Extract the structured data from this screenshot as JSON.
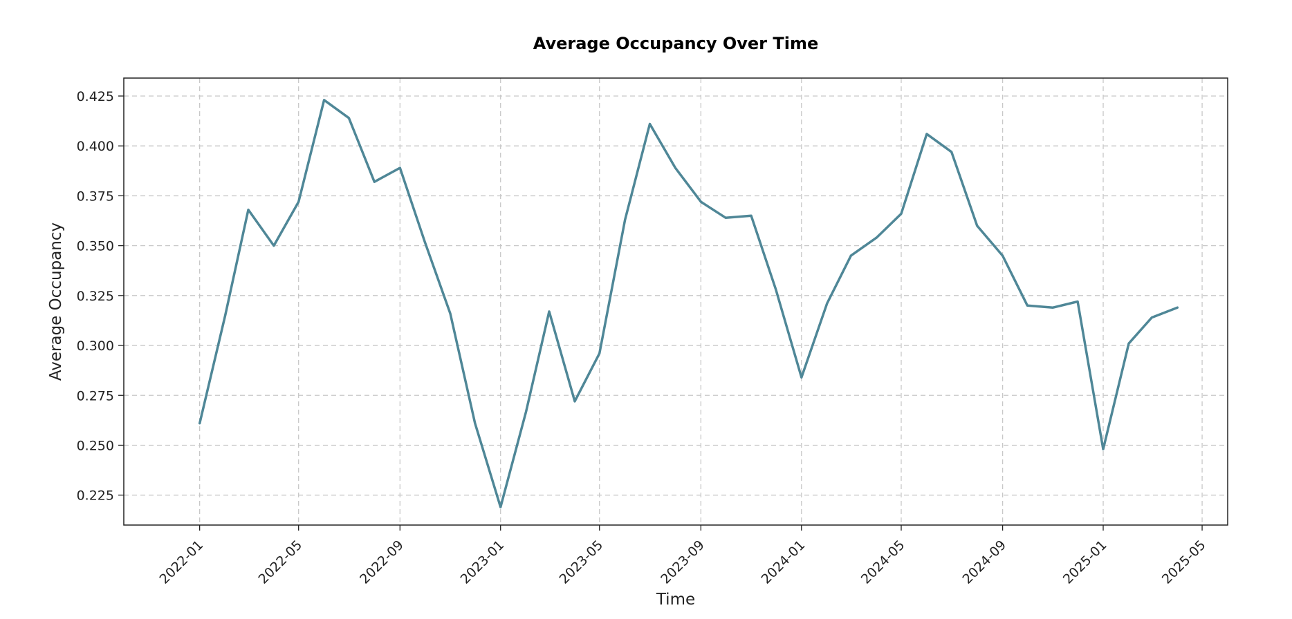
{
  "chart_data": {
    "type": "line",
    "title": "Average Occupancy Over Time",
    "xlabel": "Time",
    "ylabel": "Average Occupancy",
    "x_type": "date",
    "xlim": [
      "2021-10-01",
      "2025-06-01"
    ],
    "ylim": [
      0.21,
      0.434
    ],
    "grid": true,
    "line_color": "#4f8797",
    "x_ticks": [
      "2022-01",
      "2022-05",
      "2022-09",
      "2023-01",
      "2023-05",
      "2023-09",
      "2024-01",
      "2024-05",
      "2024-09",
      "2025-01",
      "2025-05"
    ],
    "y_ticks": [
      "0.225",
      "0.250",
      "0.275",
      "0.300",
      "0.325",
      "0.350",
      "0.375",
      "0.400",
      "0.425"
    ],
    "series": [
      {
        "x": [
          "2022-01",
          "2022-02",
          "2022-03",
          "2022-04",
          "2022-05",
          "2022-06",
          "2022-07",
          "2022-08",
          "2022-09",
          "2022-10",
          "2022-11",
          "2022-12",
          "2023-01",
          "2023-02",
          "2023-03",
          "2023-04",
          "2023-05",
          "2023-06",
          "2023-07",
          "2023-08",
          "2023-09",
          "2023-10",
          "2023-11",
          "2023-12",
          "2024-01",
          "2024-02",
          "2024-03",
          "2024-04",
          "2024-05",
          "2024-06",
          "2024-07",
          "2024-08",
          "2024-09",
          "2024-10",
          "2024-11",
          "2024-12",
          "2025-01",
          "2025-02",
          "2025-03",
          "2025-04"
        ],
        "values": [
          0.261,
          0.315,
          0.368,
          0.35,
          0.372,
          0.423,
          0.414,
          0.382,
          0.389,
          0.352,
          0.316,
          0.261,
          0.219,
          0.267,
          0.317,
          0.272,
          0.296,
          0.363,
          0.411,
          0.389,
          0.372,
          0.364,
          0.365,
          0.328,
          0.284,
          0.321,
          0.345,
          0.354,
          0.366,
          0.406,
          0.397,
          0.36,
          0.345,
          0.32,
          0.319,
          0.322,
          0.248,
          0.301,
          0.314,
          0.319
        ]
      }
    ]
  }
}
